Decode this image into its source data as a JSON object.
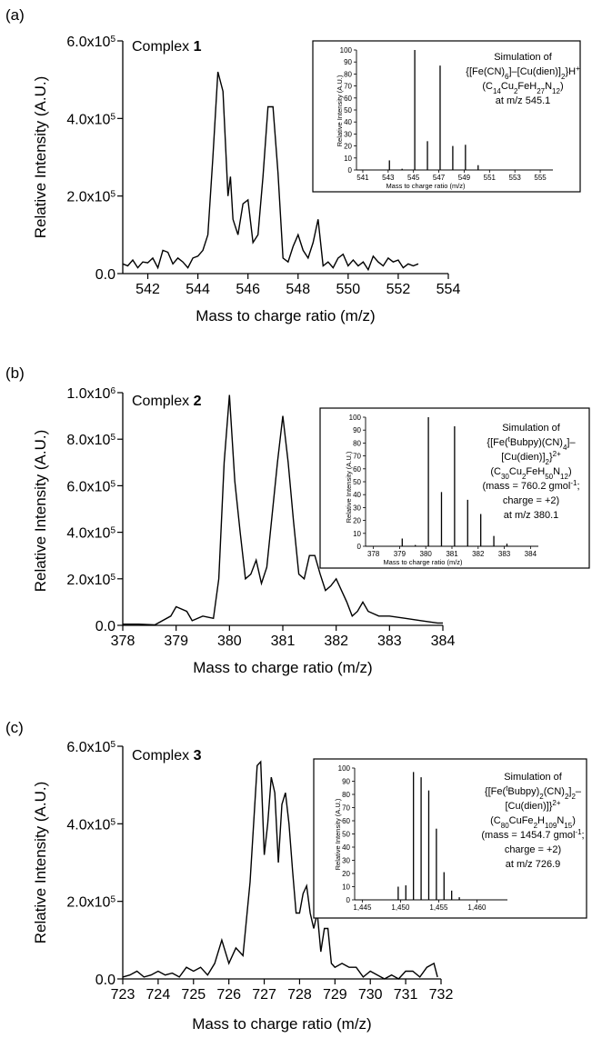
{
  "panels": [
    {
      "panel_label": "(a)",
      "compound_label": "Complex",
      "compound_number": "1",
      "chart_data": {
        "type": "line",
        "xlabel": "Mass to charge ratio (m/z)",
        "ylabel": "Relative Intensity (A.U.)",
        "xlim": [
          541,
          554
        ],
        "ylim": [
          0,
          600000
        ],
        "xticks": [
          542,
          544,
          546,
          548,
          550,
          552,
          554
        ],
        "yticks": [
          0,
          200000,
          400000,
          600000
        ],
        "ytick_labels": [
          "0.0",
          "2.0x10^5",
          "4.0x10^5",
          "6.0x10^5"
        ],
        "x": [
          541.0,
          541.2,
          541.4,
          541.6,
          541.8,
          542.0,
          542.2,
          542.4,
          542.6,
          542.8,
          543.0,
          543.2,
          543.4,
          543.6,
          543.8,
          544.0,
          544.2,
          544.4,
          544.6,
          544.8,
          545.0,
          545.2,
          545.3,
          545.4,
          545.6,
          545.8,
          546.0,
          546.2,
          546.4,
          546.6,
          546.8,
          547.0,
          547.2,
          547.4,
          547.6,
          547.8,
          548.0,
          548.2,
          548.4,
          548.6,
          548.8,
          549.0,
          549.2,
          549.4,
          549.6,
          549.8,
          550.0,
          550.2,
          550.4,
          550.6,
          550.8,
          551.0,
          551.2,
          551.4,
          551.6,
          551.8,
          552.0,
          552.2,
          552.4,
          552.6,
          552.8
        ],
        "y": [
          25000,
          20000,
          35000,
          15000,
          30000,
          28000,
          40000,
          15000,
          60000,
          55000,
          25000,
          40000,
          30000,
          15000,
          40000,
          45000,
          60000,
          100000,
          300000,
          520000,
          470000,
          200000,
          250000,
          140000,
          100000,
          180000,
          190000,
          80000,
          100000,
          250000,
          430000,
          430000,
          260000,
          40000,
          30000,
          70000,
          100000,
          60000,
          40000,
          80000,
          140000,
          20000,
          30000,
          15000,
          40000,
          50000,
          20000,
          35000,
          20000,
          30000,
          10000,
          45000,
          30000,
          20000,
          40000,
          30000,
          35000,
          15000,
          25000,
          20000,
          25000
        ]
      },
      "inset": {
        "xlabel": "Mass to charge ratio (m/z)",
        "ylabel": "Relative Intensity (A.U.)",
        "xlim": [
          540.5,
          556
        ],
        "ylim": [
          0,
          100
        ],
        "xticks": [
          541,
          543,
          545,
          547,
          549,
          551,
          553,
          555
        ],
        "yticks": [
          0,
          10,
          20,
          30,
          40,
          50,
          60,
          70,
          80,
          90,
          100
        ],
        "peaks_x": [
          543.1,
          544.1,
          545.1,
          546.1,
          547.1,
          548.1,
          549.1,
          550.1
        ],
        "peaks_y": [
          8,
          1,
          100,
          24,
          87,
          20,
          21,
          4
        ],
        "annotation": [
          "Simulation of",
          "{[Fe(CN)6]–[Cu(dien)]2}H+",
          "(C14Cu2FeH27N12)",
          "at m/z 545.1"
        ]
      }
    },
    {
      "panel_label": "(b)",
      "compound_label": "Complex",
      "compound_number": "2",
      "chart_data": {
        "type": "line",
        "xlabel": "Mass to charge ratio (m/z)",
        "ylabel": "Relative Intensity (A.U.)",
        "xlim": [
          378,
          384
        ],
        "ylim": [
          0,
          1000000
        ],
        "xticks": [
          378,
          379,
          380,
          381,
          382,
          383,
          384
        ],
        "yticks": [
          0,
          200000,
          400000,
          600000,
          800000,
          1000000
        ],
        "ytick_labels": [
          "0.0",
          "2.0x10^5",
          "4.0x10^5",
          "6.0x10^5",
          "8.0x10^5",
          "1.0x10^6"
        ],
        "x": [
          378.0,
          378.3,
          378.6,
          378.9,
          379.0,
          379.2,
          379.3,
          379.5,
          379.7,
          379.8,
          379.9,
          380.0,
          380.1,
          380.2,
          380.3,
          380.4,
          380.5,
          380.6,
          380.7,
          380.9,
          381.0,
          381.1,
          381.2,
          381.3,
          381.4,
          381.5,
          381.6,
          381.7,
          381.8,
          381.9,
          382.0,
          382.1,
          382.2,
          382.3,
          382.4,
          382.5,
          382.6,
          382.8,
          383.0,
          383.3,
          383.6,
          383.9,
          384.0
        ],
        "y": [
          5000,
          5000,
          2000,
          40000,
          80000,
          60000,
          20000,
          40000,
          30000,
          200000,
          700000,
          990000,
          620000,
          400000,
          200000,
          220000,
          280000,
          180000,
          250000,
          700000,
          900000,
          700000,
          450000,
          220000,
          200000,
          300000,
          300000,
          220000,
          150000,
          170000,
          200000,
          150000,
          100000,
          40000,
          60000,
          100000,
          60000,
          40000,
          40000,
          30000,
          20000,
          10000,
          10000
        ]
      },
      "inset": {
        "xlabel": "Mass to charge ratio (m/z)",
        "ylabel": "Relative Intensity (A.U.)",
        "xlim": [
          377.7,
          384.3
        ],
        "ylim": [
          0,
          100
        ],
        "xticks": [
          378,
          379,
          380,
          381,
          382,
          383,
          384
        ],
        "yticks": [
          0,
          10,
          20,
          30,
          40,
          50,
          60,
          70,
          80,
          90,
          100
        ],
        "peaks_x": [
          379.1,
          379.6,
          380.1,
          380.6,
          381.1,
          381.6,
          382.1,
          382.6,
          383.1
        ],
        "peaks_y": [
          6,
          1,
          100,
          42,
          93,
          36,
          25,
          8,
          2
        ],
        "annotation": [
          "Simulation of",
          "{[Fe(tBubpy)(CN)4]–",
          "[Cu(dien)]2}2+",
          "(C30Cu2FeH50N12)",
          "(mass = 760.2 gmol-1;",
          "charge = +2)",
          "at m/z 380.1"
        ]
      }
    },
    {
      "panel_label": "(c)",
      "compound_label": "Complex",
      "compound_number": "3",
      "chart_data": {
        "type": "line",
        "xlabel": "Mass to charge ratio (m/z)",
        "ylabel": "Relative Intensity (A.U.)",
        "xlim": [
          723,
          732
        ],
        "ylim": [
          0,
          600000
        ],
        "xticks": [
          723,
          724,
          725,
          726,
          727,
          728,
          729,
          730,
          731,
          732
        ],
        "yticks": [
          0,
          200000,
          400000,
          600000
        ],
        "ytick_labels": [
          "0.0",
          "2.0x10^5",
          "4.0x10^5",
          "6.0x10^5"
        ],
        "x": [
          723.0,
          723.2,
          723.4,
          723.6,
          723.8,
          724.0,
          724.2,
          724.4,
          724.6,
          724.8,
          725.0,
          725.2,
          725.4,
          725.6,
          725.8,
          726.0,
          726.2,
          726.4,
          726.6,
          726.8,
          726.9,
          727.0,
          727.1,
          727.2,
          727.3,
          727.4,
          727.5,
          727.6,
          727.7,
          727.8,
          727.9,
          728.0,
          728.1,
          728.2,
          728.3,
          728.4,
          728.5,
          728.6,
          728.7,
          728.8,
          728.9,
          729.0,
          729.2,
          729.4,
          729.6,
          729.8,
          730.0,
          730.2,
          730.4,
          730.6,
          730.8,
          731.0,
          731.2,
          731.4,
          731.6,
          731.8,
          731.9
        ],
        "y": [
          5000,
          10000,
          20000,
          5000,
          10000,
          20000,
          10000,
          15000,
          5000,
          30000,
          20000,
          30000,
          10000,
          40000,
          100000,
          40000,
          80000,
          60000,
          250000,
          550000,
          560000,
          320000,
          400000,
          520000,
          480000,
          300000,
          450000,
          480000,
          400000,
          280000,
          170000,
          170000,
          220000,
          240000,
          170000,
          130000,
          170000,
          70000,
          130000,
          130000,
          40000,
          30000,
          40000,
          30000,
          30000,
          5000,
          20000,
          10000,
          0,
          10000,
          0,
          20000,
          20000,
          5000,
          30000,
          40000,
          5000
        ]
      },
      "inset": {
        "xlabel": "Mass to charge ratio (m/z)",
        "ylabel": "Relative Intensity (A.U.)",
        "xlim": [
          1444,
          1464
        ],
        "ylim": [
          0,
          100
        ],
        "xticks": [
          1445,
          1450,
          1455,
          1460
        ],
        "xtick_labels": [
          "1,445",
          "1,450",
          "1,455",
          "1,460"
        ],
        "yticks": [
          0,
          10,
          20,
          30,
          40,
          50,
          60,
          70,
          80,
          90,
          100
        ],
        "peaks_x": [
          1449.7,
          1450.7,
          1451.7,
          1452.7,
          1453.7,
          1454.7,
          1455.7,
          1456.7,
          1457.7
        ],
        "peaks_y": [
          10,
          11,
          97,
          93,
          83,
          54,
          21,
          7,
          2
        ],
        "annotation": [
          "Simulation of",
          "{[Fe(tBubpy)2(CN)2]2–",
          "[Cu(dien)]}2+",
          "(C80CuFe2H109N15)",
          "(mass = 1454.7 gmol-1;",
          "charge = +2)",
          "at m/z 726.9"
        ]
      }
    }
  ]
}
